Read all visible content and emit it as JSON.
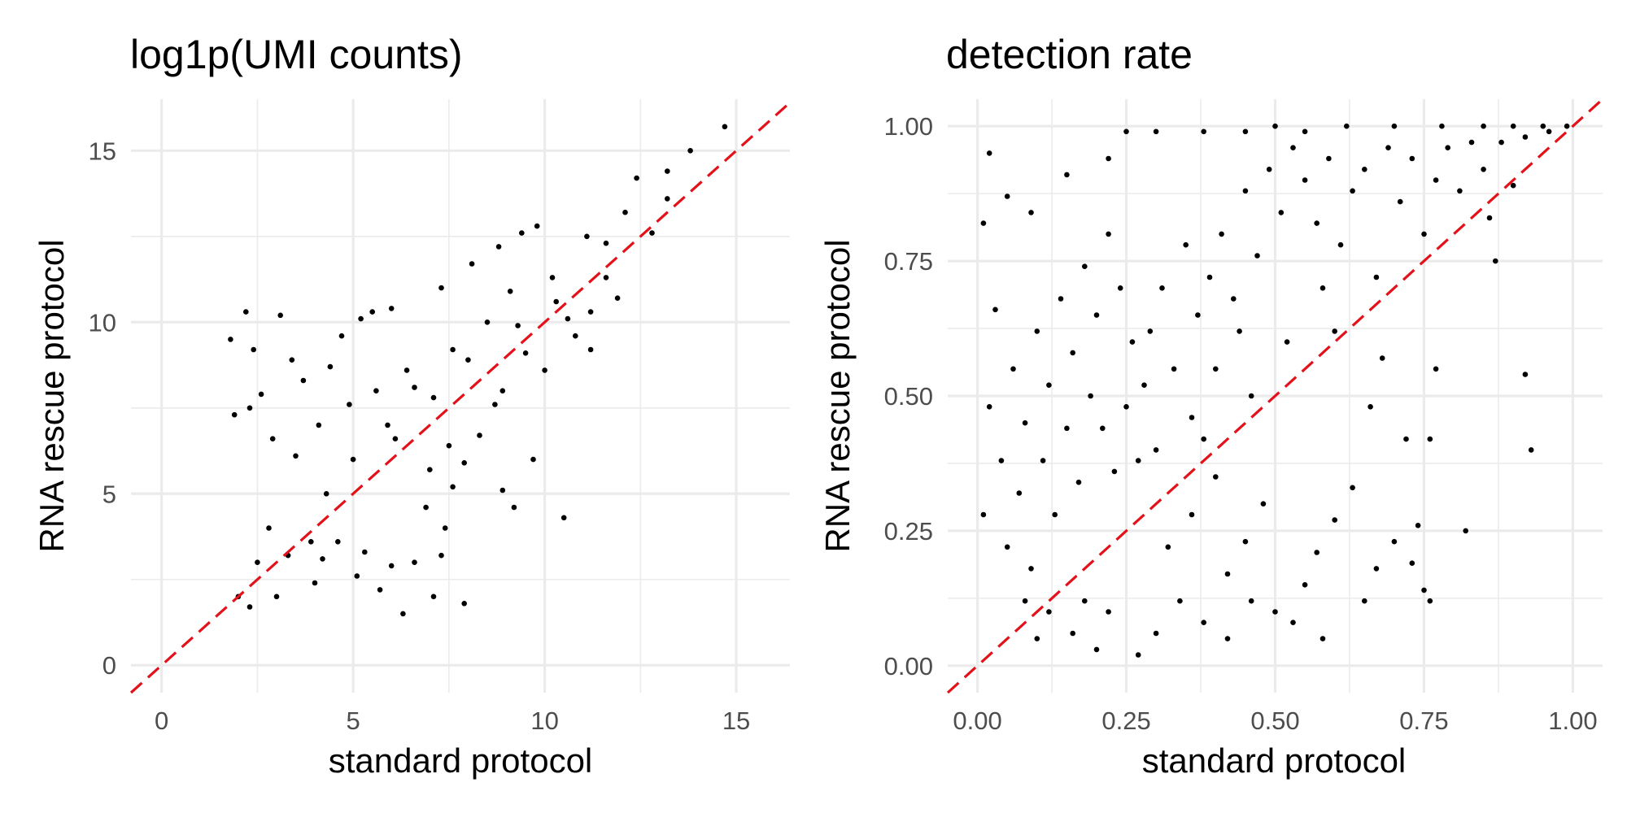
{
  "chart_data": [
    {
      "type": "scatter",
      "title": "log1p(UMI counts)",
      "xlabel": "standard protocol",
      "ylabel": "RNA rescue protocol",
      "xlim": [
        -0.8,
        16.4
      ],
      "ylim": [
        -0.8,
        16.5
      ],
      "x_ticks": [
        "0",
        "5",
        "10",
        "15"
      ],
      "y_ticks": [
        "0",
        "5",
        "10",
        "15"
      ],
      "grid": true,
      "reference_line": {
        "style": "dashed",
        "color": "#e3121a",
        "slope": 1,
        "intercept": 0
      },
      "series": [
        {
          "points": [
            [
              14.7,
              15.7
            ],
            [
              13.8,
              15.0
            ],
            [
              13.2,
              14.4
            ],
            [
              13.2,
              13.6
            ],
            [
              12.4,
              14.2
            ],
            [
              12.8,
              12.6
            ],
            [
              12.1,
              13.2
            ],
            [
              11.6,
              12.3
            ],
            [
              11.1,
              12.5
            ],
            [
              11.6,
              11.3
            ],
            [
              11.2,
              9.2
            ],
            [
              10.8,
              9.6
            ],
            [
              10.5,
              4.3
            ],
            [
              9.7,
              6.0
            ],
            [
              9.2,
              4.6
            ],
            [
              8.9,
              5.1
            ],
            [
              8.7,
              7.6
            ],
            [
              8.3,
              6.7
            ],
            [
              7.9,
              5.9
            ],
            [
              7.5,
              6.4
            ],
            [
              7.6,
              5.2
            ],
            [
              7.4,
              4.0
            ],
            [
              7.0,
              5.7
            ],
            [
              6.9,
              4.6
            ],
            [
              7.3,
              3.2
            ],
            [
              6.6,
              3.0
            ],
            [
              7.1,
              2.0
            ],
            [
              7.9,
              1.8
            ],
            [
              6.3,
              1.5
            ],
            [
              6.0,
              2.9
            ],
            [
              5.7,
              2.2
            ],
            [
              5.1,
              2.6
            ],
            [
              5.3,
              3.3
            ],
            [
              4.6,
              3.6
            ],
            [
              4.0,
              2.4
            ],
            [
              3.3,
              3.2
            ],
            [
              2.9,
              6.6
            ],
            [
              2.2,
              10.3
            ],
            [
              3.1,
              10.2
            ],
            [
              3.4,
              8.9
            ],
            [
              2.4,
              9.2
            ],
            [
              1.8,
              9.5
            ],
            [
              1.9,
              7.3
            ],
            [
              2.3,
              7.5
            ],
            [
              2.6,
              7.9
            ],
            [
              4.4,
              8.7
            ],
            [
              4.7,
              9.6
            ],
            [
              5.2,
              10.1
            ],
            [
              5.5,
              10.3
            ],
            [
              6.0,
              10.4
            ],
            [
              7.3,
              11.0
            ],
            [
              8.1,
              11.7
            ],
            [
              8.8,
              12.2
            ],
            [
              9.4,
              12.6
            ],
            [
              9.8,
              12.8
            ],
            [
              3.7,
              8.3
            ],
            [
              4.1,
              7.0
            ],
            [
              3.5,
              6.1
            ],
            [
              5.0,
              6.0
            ],
            [
              8.5,
              10.0
            ],
            [
              9.1,
              10.9
            ],
            [
              10.2,
              11.3
            ],
            [
              10.6,
              10.1
            ],
            [
              11.9,
              10.7
            ],
            [
              11.2,
              10.3
            ],
            [
              10.0,
              8.6
            ],
            [
              9.5,
              9.1
            ],
            [
              8.9,
              8.0
            ],
            [
              6.6,
              8.1
            ],
            [
              7.6,
              9.2
            ],
            [
              5.9,
              7.0
            ],
            [
              4.3,
              5.0
            ],
            [
              2.8,
              4.0
            ],
            [
              2.5,
              3.0
            ],
            [
              3.9,
              3.6
            ],
            [
              6.1,
              6.6
            ],
            [
              7.1,
              7.8
            ],
            [
              6.4,
              8.6
            ],
            [
              5.6,
              8.0
            ],
            [
              4.9,
              7.6
            ],
            [
              8.0,
              8.9
            ],
            [
              9.3,
              9.9
            ],
            [
              10.3,
              10.6
            ],
            [
              2.0,
              2.0
            ],
            [
              2.3,
              1.7
            ],
            [
              3.0,
              2.0
            ],
            [
              4.2,
              3.1
            ]
          ]
        }
      ]
    },
    {
      "type": "scatter",
      "title": "detection rate",
      "xlabel": "standard protocol",
      "ylabel": "RNA rescue protocol",
      "xlim": [
        -0.05,
        1.05
      ],
      "ylim": [
        -0.05,
        1.05
      ],
      "x_ticks": [
        "0.00",
        "0.25",
        "0.50",
        "0.75",
        "1.00"
      ],
      "y_ticks": [
        "0.00",
        "0.25",
        "0.50",
        "0.75",
        "1.00"
      ],
      "grid": true,
      "reference_line": {
        "style": "dashed",
        "color": "#e3121a",
        "slope": 1,
        "intercept": 0
      },
      "series": [
        {
          "points": [
            [
              0.02,
              0.95
            ],
            [
              0.01,
              0.82
            ],
            [
              0.05,
              0.87
            ],
            [
              0.09,
              0.84
            ],
            [
              0.15,
              0.91
            ],
            [
              0.22,
              0.94
            ],
            [
              0.25,
              0.99
            ],
            [
              0.3,
              0.99
            ],
            [
              0.38,
              0.99
            ],
            [
              0.45,
              0.99
            ],
            [
              0.5,
              1.0
            ],
            [
              0.55,
              0.99
            ],
            [
              0.62,
              1.0
            ],
            [
              0.7,
              1.0
            ],
            [
              0.78,
              1.0
            ],
            [
              0.85,
              1.0
            ],
            [
              0.9,
              1.0
            ],
            [
              0.95,
              1.0
            ],
            [
              0.99,
              1.0
            ],
            [
              0.9,
              0.89
            ],
            [
              0.86,
              0.83
            ],
            [
              0.87,
              0.75
            ],
            [
              0.92,
              0.54
            ],
            [
              0.93,
              0.4
            ],
            [
              0.82,
              0.25
            ],
            [
              0.77,
              0.55
            ],
            [
              0.76,
              0.42
            ],
            [
              0.72,
              0.42
            ],
            [
              0.74,
              0.26
            ],
            [
              0.75,
              0.14
            ],
            [
              0.76,
              0.12
            ],
            [
              0.73,
              0.19
            ],
            [
              0.67,
              0.18
            ],
            [
              0.65,
              0.12
            ],
            [
              0.7,
              0.23
            ],
            [
              0.68,
              0.57
            ],
            [
              0.66,
              0.48
            ],
            [
              0.63,
              0.33
            ],
            [
              0.6,
              0.27
            ],
            [
              0.57,
              0.21
            ],
            [
              0.55,
              0.15
            ],
            [
              0.53,
              0.08
            ],
            [
              0.58,
              0.05
            ],
            [
              0.5,
              0.1
            ],
            [
              0.48,
              0.3
            ],
            [
              0.45,
              0.23
            ],
            [
              0.42,
              0.17
            ],
            [
              0.4,
              0.35
            ],
            [
              0.38,
              0.42
            ],
            [
              0.36,
              0.28
            ],
            [
              0.34,
              0.12
            ],
            [
              0.32,
              0.22
            ],
            [
              0.3,
              0.4
            ],
            [
              0.28,
              0.52
            ],
            [
              0.26,
              0.6
            ],
            [
              0.24,
              0.7
            ],
            [
              0.22,
              0.8
            ],
            [
              0.2,
              0.65
            ],
            [
              0.18,
              0.74
            ],
            [
              0.16,
              0.58
            ],
            [
              0.14,
              0.68
            ],
            [
              0.12,
              0.52
            ],
            [
              0.1,
              0.62
            ],
            [
              0.08,
              0.45
            ],
            [
              0.06,
              0.55
            ],
            [
              0.04,
              0.38
            ],
            [
              0.03,
              0.66
            ],
            [
              0.02,
              0.48
            ],
            [
              0.01,
              0.28
            ],
            [
              0.05,
              0.22
            ],
            [
              0.07,
              0.32
            ],
            [
              0.09,
              0.18
            ],
            [
              0.11,
              0.38
            ],
            [
              0.13,
              0.28
            ],
            [
              0.15,
              0.44
            ],
            [
              0.17,
              0.34
            ],
            [
              0.19,
              0.5
            ],
            [
              0.21,
              0.44
            ],
            [
              0.23,
              0.36
            ],
            [
              0.25,
              0.48
            ],
            [
              0.27,
              0.38
            ],
            [
              0.29,
              0.62
            ],
            [
              0.31,
              0.7
            ],
            [
              0.33,
              0.55
            ],
            [
              0.35,
              0.78
            ],
            [
              0.37,
              0.65
            ],
            [
              0.39,
              0.72
            ],
            [
              0.41,
              0.8
            ],
            [
              0.43,
              0.68
            ],
            [
              0.45,
              0.88
            ],
            [
              0.47,
              0.76
            ],
            [
              0.49,
              0.92
            ],
            [
              0.51,
              0.84
            ],
            [
              0.53,
              0.96
            ],
            [
              0.55,
              0.9
            ],
            [
              0.57,
              0.82
            ],
            [
              0.59,
              0.94
            ],
            [
              0.61,
              0.78
            ],
            [
              0.63,
              0.88
            ],
            [
              0.65,
              0.92
            ],
            [
              0.67,
              0.72
            ],
            [
              0.69,
              0.96
            ],
            [
              0.71,
              0.86
            ],
            [
              0.73,
              0.94
            ],
            [
              0.75,
              0.8
            ],
            [
              0.77,
              0.9
            ],
            [
              0.79,
              0.96
            ],
            [
              0.81,
              0.88
            ],
            [
              0.83,
              0.97
            ],
            [
              0.85,
              0.92
            ],
            [
              0.88,
              0.97
            ],
            [
              0.92,
              0.98
            ],
            [
              0.96,
              0.99
            ],
            [
              0.6,
              0.62
            ],
            [
              0.58,
              0.7
            ],
            [
              0.52,
              0.6
            ],
            [
              0.46,
              0.5
            ],
            [
              0.44,
              0.62
            ],
            [
              0.4,
              0.55
            ],
            [
              0.36,
              0.46
            ],
            [
              0.42,
              0.05
            ],
            [
              0.46,
              0.12
            ],
            [
              0.38,
              0.08
            ],
            [
              0.3,
              0.06
            ],
            [
              0.27,
              0.02
            ],
            [
              0.22,
              0.1
            ],
            [
              0.2,
              0.03
            ],
            [
              0.18,
              0.12
            ],
            [
              0.16,
              0.06
            ],
            [
              0.12,
              0.1
            ],
            [
              0.1,
              0.05
            ],
            [
              0.08,
              0.12
            ]
          ]
        }
      ]
    }
  ]
}
